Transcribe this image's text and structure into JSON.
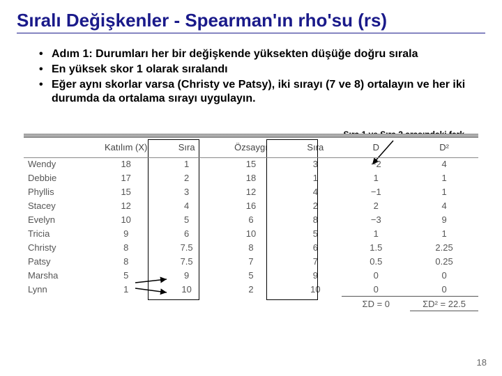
{
  "title": "Sıralı Değişkenler - Spearman'ın rho'su (rs)",
  "bullets": [
    "Adım 1: Durumları her bir değişkende yüksekten düşüğe doğru sırala",
    "En yüksek skor 1 olarak sıralandı",
    "Eğer aynı skorlar varsa (Christy ve Patsy), iki sırayı (7 ve 8) ortalayın ve her iki durumda da ortalama sırayı uygulayın."
  ],
  "annotation": "Sıra 1 ve Sıra 2 arasındaki fark",
  "table": {
    "headers": [
      "",
      "Katılım (X)",
      "Sıra",
      "Özsaygı",
      "Sıra",
      "D",
      "D²"
    ],
    "rows": [
      [
        "Wendy",
        "18",
        "1",
        "15",
        "3",
        "−2",
        "4"
      ],
      [
        "Debbie",
        "17",
        "2",
        "18",
        "1",
        "1",
        "1"
      ],
      [
        "Phyllis",
        "15",
        "3",
        "12",
        "4",
        "−1",
        "1"
      ],
      [
        "Stacey",
        "12",
        "4",
        "16",
        "2",
        "2",
        "4"
      ],
      [
        "Evelyn",
        "10",
        "5",
        "6",
        "8",
        "−3",
        "9"
      ],
      [
        "Tricia",
        "9",
        "6",
        "10",
        "5",
        "1",
        "1"
      ],
      [
        "Christy",
        "8",
        "7.5",
        "8",
        "6",
        "1.5",
        "2.25"
      ],
      [
        "Patsy",
        "8",
        "7.5",
        "7",
        "7",
        "0.5",
        "0.25"
      ],
      [
        "Marsha",
        "5",
        "9",
        "5",
        "9",
        "0",
        "0"
      ],
      [
        "Lynn",
        "1",
        "10",
        "2",
        "10",
        "0",
        "0"
      ]
    ],
    "sums": {
      "d": "ΣD = 0",
      "d2": "ΣD² = 22.5"
    }
  },
  "page_number": "18",
  "colors": {
    "title": "#1a1a8a",
    "text": "#000000",
    "table_text": "#555555"
  }
}
